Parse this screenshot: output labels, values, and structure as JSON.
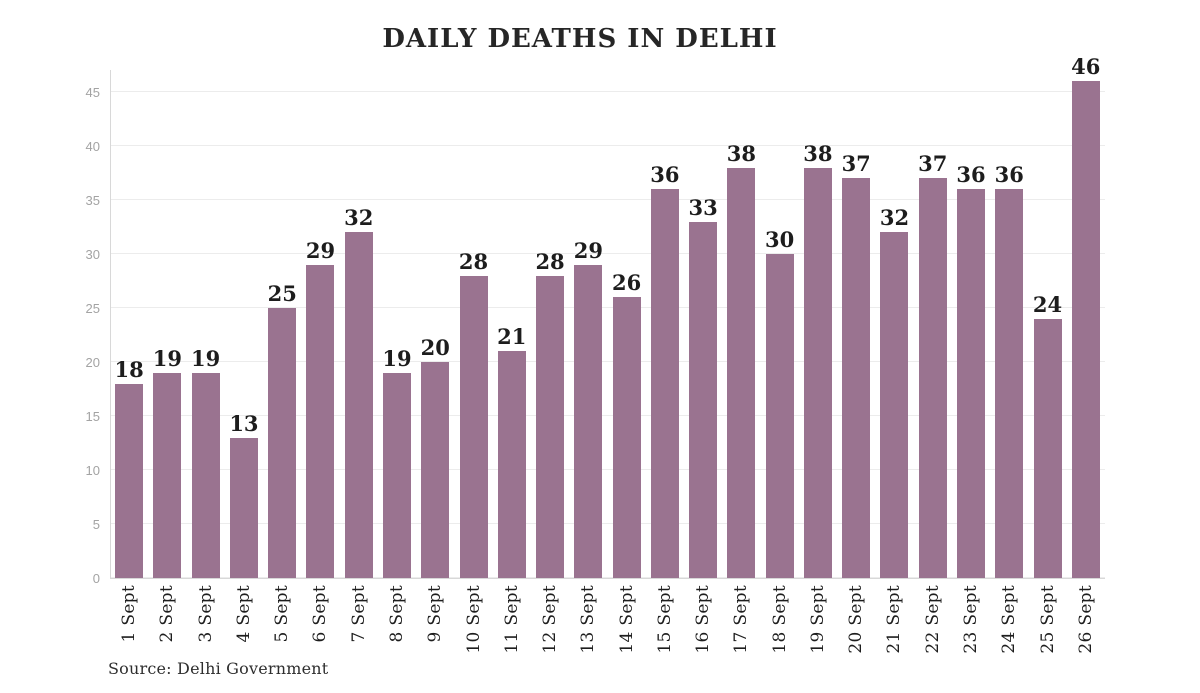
{
  "chart_data": {
    "type": "bar",
    "title": "DAILY DEATHS IN DELHI",
    "source": "Source: Delhi Government",
    "categories": [
      "1 Sept",
      "2 Sept",
      "3 Sept",
      "4 Sept",
      "5 Sept",
      "6 Sept",
      "7 Sept",
      "8 Sept",
      "9 Sept",
      "10 Sept",
      "11 Sept",
      "12 Sept",
      "13 Sept",
      "14 Sept",
      "15 Sept",
      "16 Sept",
      "17 Sept",
      "18 Sept",
      "19 Sept",
      "20 Sept",
      "21 Sept",
      "22 Sept",
      "23 Sept",
      "24 Sept",
      "25 Sept",
      "26 Sept"
    ],
    "values": [
      18,
      19,
      19,
      13,
      25,
      29,
      32,
      19,
      20,
      28,
      21,
      28,
      29,
      26,
      36,
      33,
      38,
      30,
      38,
      37,
      32,
      37,
      36,
      36,
      24,
      46
    ],
    "xlabel": "",
    "ylabel": "",
    "ylim": [
      0,
      46.5
    ],
    "yticks": [
      0,
      5,
      10,
      15,
      20,
      25,
      30,
      35,
      40,
      45
    ],
    "grid": "horizontal",
    "legend": "none",
    "bar_color": "#9a7390",
    "label_color": "#1d1d1d",
    "tick_color": "#a3a3a3",
    "gridline_color": "#ececec",
    "axis_color": "#d8d8d8"
  }
}
